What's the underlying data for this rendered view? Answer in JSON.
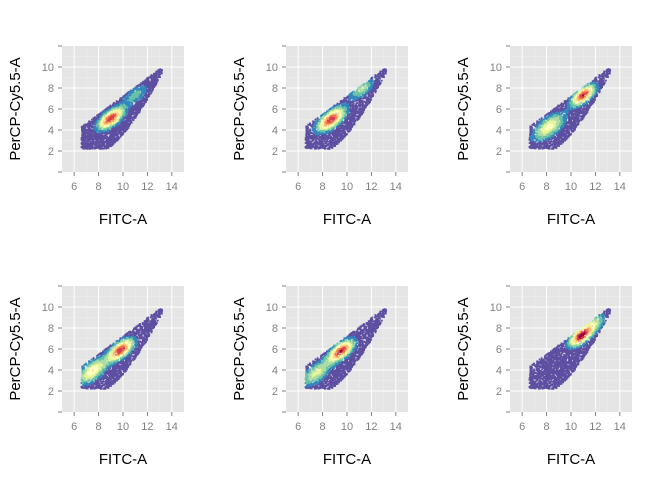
{
  "figure": {
    "layout": "2x3 grid of density scatter panels",
    "palette": [
      "#5e4fa2",
      "#3288bd",
      "#66c2a5",
      "#abdda4",
      "#e6f598",
      "#ffffbf",
      "#fee08b",
      "#fdae61",
      "#f46d43",
      "#d53e4f",
      "#9e0142"
    ],
    "panel_background": "#e5e5e5",
    "grid_color": "#ffffff"
  },
  "chart_data": [
    {
      "type": "scatter",
      "xlabel": "FITC-A",
      "ylabel": "PerCP-Cy5.5-A",
      "xlim": [
        5,
        15
      ],
      "ylim": [
        0,
        12
      ],
      "x_ticks": [
        6,
        8,
        10,
        12,
        14
      ],
      "y_ticks": [
        2,
        4,
        6,
        8,
        10
      ],
      "x_tick_labels": [
        "6",
        "8",
        "10",
        "12",
        "14"
      ],
      "y_tick_labels": [
        "2",
        "4",
        "6",
        "8",
        "10"
      ],
      "grid": true,
      "density_peaks": [
        {
          "x": 9.0,
          "y": 5.1,
          "weight": 1.0,
          "spread": 0.35
        },
        {
          "x": 11.0,
          "y": 7.3,
          "weight": 0.25,
          "spread": 0.4
        }
      ]
    },
    {
      "type": "scatter",
      "xlabel": "FITC-A",
      "ylabel": "PerCP-Cy5.5-A",
      "xlim": [
        5,
        15
      ],
      "ylim": [
        0,
        12
      ],
      "x_ticks": [
        6,
        8,
        10,
        12,
        14
      ],
      "y_ticks": [
        2,
        4,
        6,
        8,
        10
      ],
      "x_tick_labels": [
        "6",
        "8",
        "10",
        "12",
        "14"
      ],
      "y_tick_labels": [
        "2",
        "4",
        "6",
        "8",
        "10"
      ],
      "grid": true,
      "density_peaks": [
        {
          "x": 8.7,
          "y": 5.0,
          "weight": 1.0,
          "spread": 0.4
        },
        {
          "x": 11.2,
          "y": 7.9,
          "weight": 0.35,
          "spread": 0.35
        }
      ]
    },
    {
      "type": "scatter",
      "xlabel": "FITC-A",
      "ylabel": "PerCP-Cy5.5-A",
      "xlim": [
        5,
        15
      ],
      "ylim": [
        0,
        12
      ],
      "x_ticks": [
        6,
        8,
        10,
        12,
        14
      ],
      "y_ticks": [
        2,
        4,
        6,
        8,
        10
      ],
      "x_tick_labels": [
        "6",
        "8",
        "10",
        "12",
        "14"
      ],
      "y_tick_labels": [
        "2",
        "4",
        "6",
        "8",
        "10"
      ],
      "grid": true,
      "density_peaks": [
        {
          "x": 11.0,
          "y": 7.3,
          "weight": 1.0,
          "spread": 0.3
        },
        {
          "x": 8.2,
          "y": 4.3,
          "weight": 0.55,
          "spread": 0.55
        }
      ]
    },
    {
      "type": "scatter",
      "xlabel": "FITC-A",
      "ylabel": "PerCP-Cy5.5-A",
      "xlim": [
        5,
        15
      ],
      "ylim": [
        0,
        12
      ],
      "x_ticks": [
        6,
        8,
        10,
        12,
        14
      ],
      "y_ticks": [
        2,
        4,
        6,
        8,
        10
      ],
      "x_tick_labels": [
        "6",
        "8",
        "10",
        "12",
        "14"
      ],
      "y_tick_labels": [
        "2",
        "4",
        "6",
        "8",
        "10"
      ],
      "grid": true,
      "density_peaks": [
        {
          "x": 9.8,
          "y": 5.9,
          "weight": 1.0,
          "spread": 0.35
        },
        {
          "x": 7.5,
          "y": 3.9,
          "weight": 0.6,
          "spread": 0.5
        }
      ]
    },
    {
      "type": "scatter",
      "xlabel": "FITC-A",
      "ylabel": "PerCP-Cy5.5-A",
      "xlim": [
        5,
        15
      ],
      "ylim": [
        0,
        12
      ],
      "x_ticks": [
        6,
        8,
        10,
        12,
        14
      ],
      "y_ticks": [
        2,
        4,
        6,
        8,
        10
      ],
      "x_tick_labels": [
        "6",
        "8",
        "10",
        "12",
        "14"
      ],
      "y_tick_labels": [
        "2",
        "4",
        "6",
        "8",
        "10"
      ],
      "grid": true,
      "density_peaks": [
        {
          "x": 9.5,
          "y": 5.8,
          "weight": 1.0,
          "spread": 0.35
        },
        {
          "x": 7.5,
          "y": 3.7,
          "weight": 0.45,
          "spread": 0.5
        }
      ]
    },
    {
      "type": "scatter",
      "xlabel": "FITC-A",
      "ylabel": "PerCP-Cy5.5-A",
      "xlim": [
        5,
        15
      ],
      "ylim": [
        0,
        12
      ],
      "x_ticks": [
        6,
        8,
        10,
        12,
        14
      ],
      "y_ticks": [
        2,
        4,
        6,
        8,
        10
      ],
      "x_tick_labels": [
        "6",
        "8",
        "10",
        "12",
        "14"
      ],
      "y_tick_labels": [
        "2",
        "4",
        "6",
        "8",
        "10"
      ],
      "grid": true,
      "density_peaks": [
        {
          "x": 10.8,
          "y": 7.2,
          "weight": 1.0,
          "spread": 0.3
        },
        {
          "x": 11.8,
          "y": 8.3,
          "weight": 0.4,
          "spread": 0.35
        }
      ]
    }
  ]
}
